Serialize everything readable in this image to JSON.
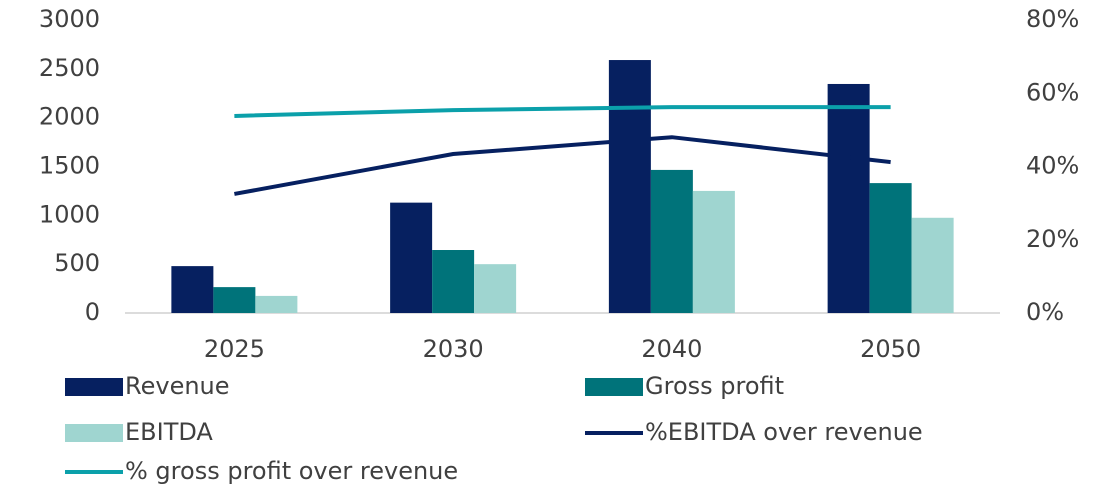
{
  "chart_data": {
    "type": "bar",
    "categories": [
      "2025",
      "2030",
      "2040",
      "2050"
    ],
    "series": [
      {
        "name": "Revenue",
        "color": "#062060",
        "values": [
          480,
          1130,
          2590,
          2345
        ]
      },
      {
        "name": "Gross profit",
        "color": "#00737a",
        "values": [
          265,
          645,
          1465,
          1330
        ]
      },
      {
        "name": "EBITDA",
        "color": "#9fd5d0",
        "values": [
          175,
          500,
          1250,
          975
        ]
      },
      {
        "name": "%EBITDA over revenue",
        "type": "line",
        "axis": "y2",
        "color": "#062060",
        "values": [
          32.5,
          43.4,
          48,
          41.2
        ]
      },
      {
        "name": "% gross profit over revenue",
        "type": "line",
        "axis": "y2",
        "color": "#0ba0aa",
        "values": [
          53.8,
          55.4,
          56.2,
          56.2
        ]
      }
    ],
    "ylim": [
      0,
      3000
    ],
    "yticks": [
      0,
      500,
      1000,
      1500,
      2000,
      2500,
      3000
    ],
    "y2lim": [
      0,
      80
    ],
    "y2ticks": [
      {
        "value": 0,
        "label": "0%"
      },
      {
        "value": 20,
        "label": "20%"
      },
      {
        "value": 40,
        "label": "40%"
      },
      {
        "value": 60,
        "label": "60%"
      },
      {
        "value": 80,
        "label": "80%"
      }
    ],
    "legend": "bottom"
  }
}
